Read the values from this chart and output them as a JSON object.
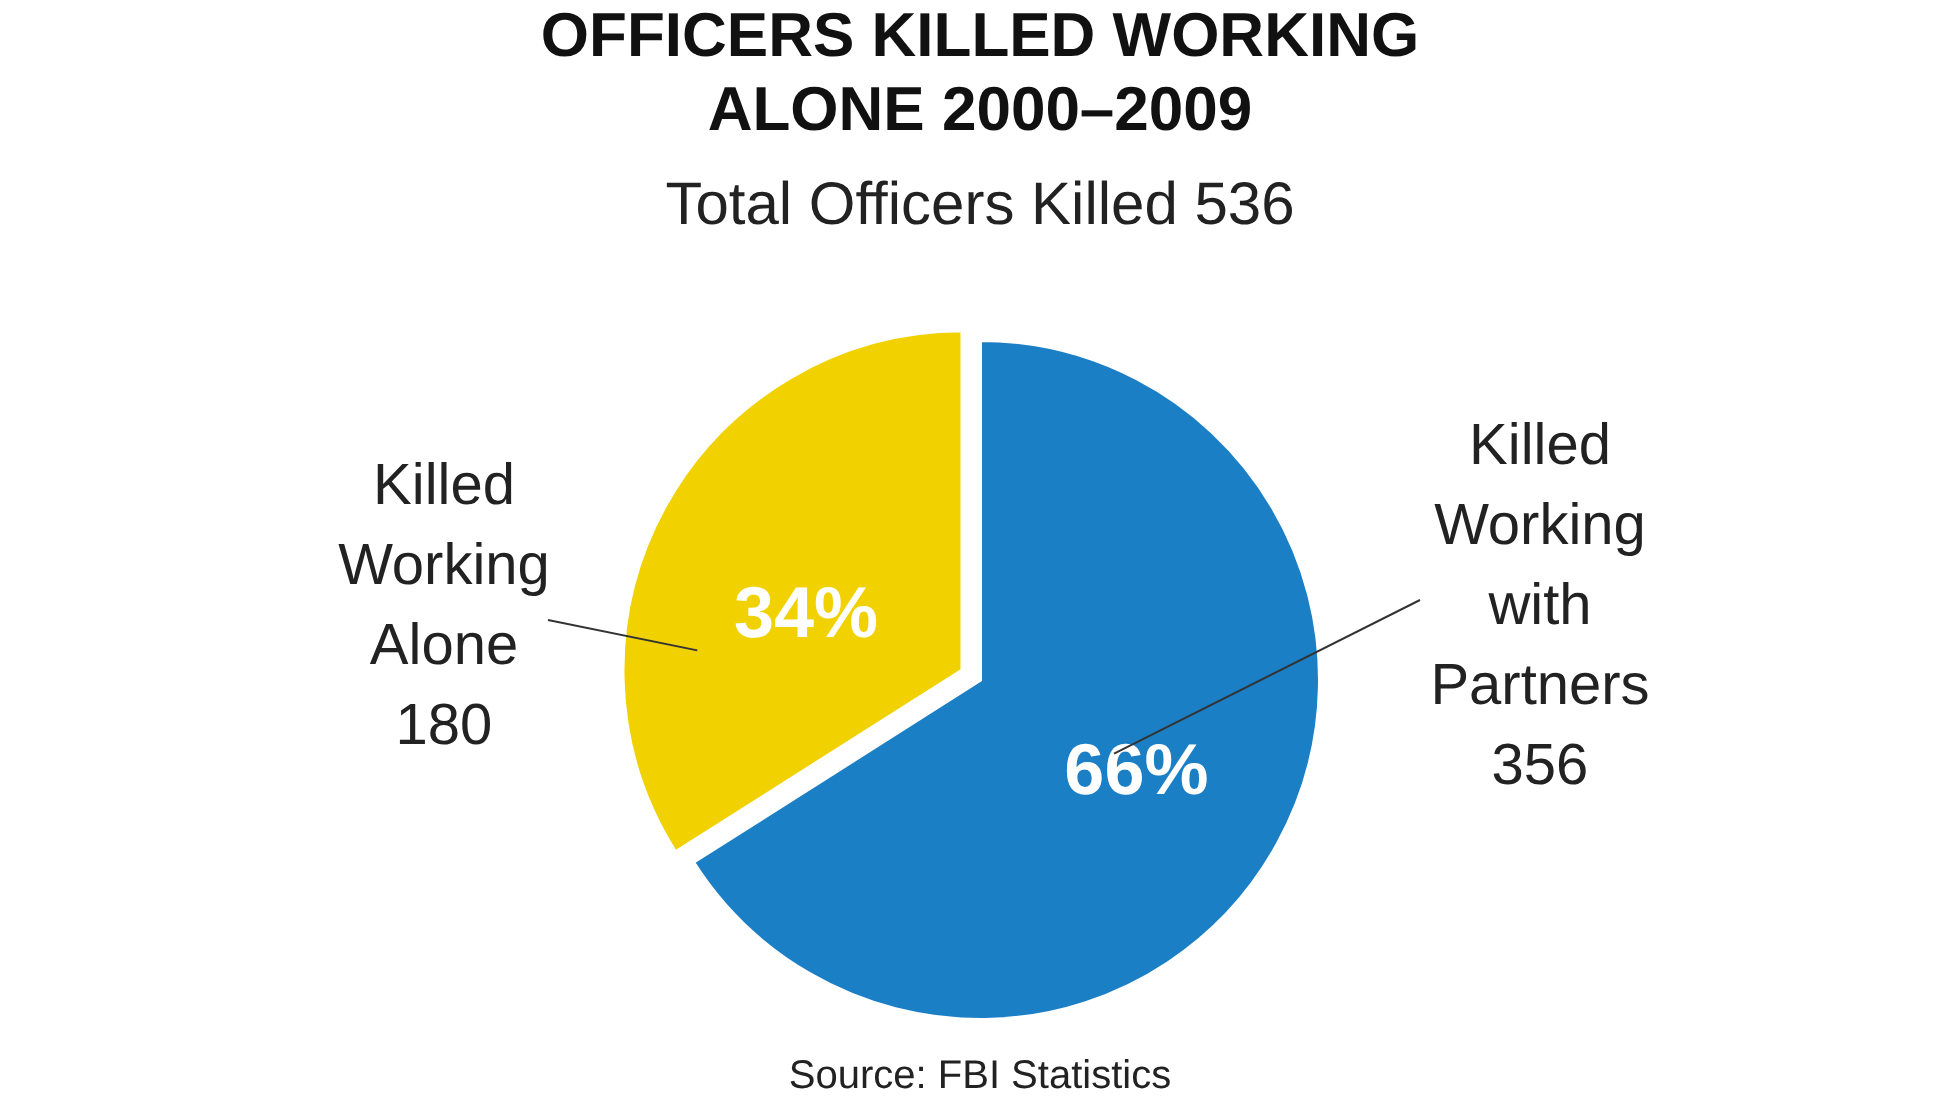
{
  "chart_data": {
    "type": "pie",
    "title": "OFFICERS KILLED WORKING ALONE 2000–2009",
    "subtitle": "Total Officers Killed 536",
    "categories": [
      "Killed Working Alone 180",
      "Killed Working with Partners 356"
    ],
    "values": [
      34,
      66
    ],
    "value_labels": [
      "34%",
      "66%"
    ],
    "colors": [
      "#f2d100",
      "#1b7fc6"
    ],
    "annotations": [
      "Source: FBI Statistics"
    ]
  }
}
